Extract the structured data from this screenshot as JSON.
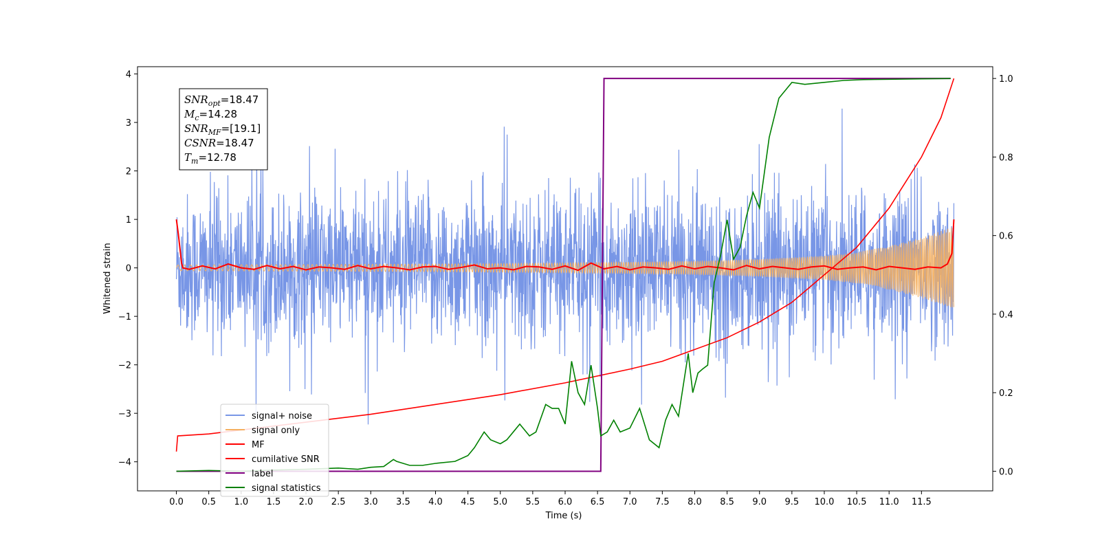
{
  "chart_data": {
    "type": "line",
    "xlabel": "Time (s)",
    "ylabel": "Whitened strain",
    "x_ticks": [
      "0.0",
      "0.5",
      "1.0",
      "1.5",
      "2.0",
      "2.5",
      "3.0",
      "3.5",
      "4.0",
      "4.5",
      "5.0",
      "5.5",
      "6.0",
      "6.5",
      "7.0",
      "7.5",
      "8.0",
      "8.5",
      "9.0",
      "9.5",
      "10.0",
      "10.5",
      "11.0",
      "11.5"
    ],
    "xlim": [
      -0.6,
      12.6
    ],
    "ylim": [
      -4.6,
      4.15
    ],
    "y_ticks": [
      "4",
      "3",
      "2",
      "1",
      "0",
      "−1",
      "−2",
      "−3",
      "−4"
    ],
    "y2lim": [
      -0.05,
      1.03
    ],
    "y2_ticks": [
      "0.0",
      "0.2",
      "0.4",
      "0.6",
      "0.8",
      "1.0"
    ],
    "annotations": [
      {
        "base": "SNR",
        "sub": "opt",
        "value": "=18.47"
      },
      {
        "base": "M",
        "sub": "c",
        "value": "=14.28"
      },
      {
        "base": "SNR",
        "sub": "MF",
        "value": "=[19.1]"
      },
      {
        "base": "CSNR",
        "sub": "",
        "value": "=18.47"
      },
      {
        "base": "T",
        "sub": "m",
        "value": "=12.78"
      }
    ],
    "legend_position": "lower-left",
    "series": [
      {
        "name": "signal+ noise",
        "color": "#7896e6",
        "axis": "left",
        "description": "noisy whitened strain, approx ±2 amplitude with spikes to ±3",
        "envelope": {
          "x": [
            0,
            12
          ],
          "min": -2.2,
          "max": 2.2,
          "peak_min": -3.3,
          "peak_max": 3.3
        }
      },
      {
        "name": "signal only",
        "color": "#f5b060",
        "axis": "left",
        "envelope": {
          "x": [
            0,
            2,
            4,
            6,
            8,
            9,
            10,
            10.5,
            11,
            11.5,
            12
          ],
          "amp": [
            0.06,
            0.07,
            0.08,
            0.1,
            0.14,
            0.18,
            0.25,
            0.32,
            0.45,
            0.62,
            0.85
          ]
        }
      },
      {
        "name": "MF",
        "color": "#ff0000",
        "axis": "left",
        "x": [
          0,
          0.03,
          0.08,
          0.1,
          0.2,
          0.4,
          0.6,
          0.8,
          1.0,
          1.2,
          1.4,
          1.6,
          1.8,
          2.0,
          2.2,
          2.4,
          2.6,
          2.8,
          3.0,
          3.2,
          3.4,
          3.6,
          3.8,
          4.0,
          4.2,
          4.4,
          4.6,
          4.8,
          5.0,
          5.2,
          5.4,
          5.6,
          5.8,
          6.0,
          6.2,
          6.4,
          6.6,
          6.8,
          7.0,
          7.2,
          7.4,
          7.6,
          7.8,
          8.0,
          8.2,
          8.4,
          8.6,
          8.8,
          9.0,
          9.2,
          9.4,
          9.6,
          9.8,
          10.0,
          10.2,
          10.4,
          10.6,
          10.8,
          11.0,
          11.2,
          11.4,
          11.6,
          11.8,
          11.9,
          11.97,
          12.0
        ],
        "y": [
          1.0,
          0.7,
          0.1,
          0.0,
          -0.03,
          0.04,
          -0.02,
          0.08,
          0.0,
          -0.03,
          0.05,
          -0.02,
          0.03,
          -0.04,
          0.02,
          0.0,
          -0.03,
          0.05,
          -0.02,
          0.03,
          0.0,
          -0.04,
          0.02,
          0.03,
          -0.03,
          0.01,
          0.06,
          -0.02,
          0.0,
          -0.04,
          0.03,
          0.02,
          -0.03,
          0.04,
          -0.05,
          0.1,
          -0.02,
          0.03,
          -0.04,
          0.02,
          0.0,
          -0.03,
          0.04,
          -0.02,
          0.03,
          0.0,
          -0.04,
          0.05,
          -0.02,
          0.03,
          0.0,
          -0.03,
          0.02,
          0.04,
          -0.03,
          0.0,
          0.02,
          -0.04,
          0.03,
          0.0,
          -0.03,
          0.02,
          0.0,
          0.08,
          0.3,
          1.0
        ]
      },
      {
        "name": "cumilative SNR",
        "color": "#ff0000",
        "axis": "right",
        "x": [
          0,
          0.02,
          0.5,
          1.0,
          2.0,
          3.0,
          4.0,
          5.0,
          6.0,
          7.0,
          7.5,
          8.0,
          8.5,
          9.0,
          9.5,
          10.0,
          10.5,
          11.0,
          11.5,
          11.8,
          12.0
        ],
        "y": [
          0.05,
          0.09,
          0.095,
          0.105,
          0.125,
          0.145,
          0.17,
          0.195,
          0.225,
          0.26,
          0.28,
          0.31,
          0.34,
          0.38,
          0.43,
          0.5,
          0.57,
          0.67,
          0.8,
          0.9,
          1.0
        ]
      },
      {
        "name": "label",
        "color": "#800080",
        "axis": "right",
        "x": [
          0,
          6.55,
          6.6,
          11.95
        ],
        "y": [
          0.0,
          0.0,
          1.0,
          1.0
        ]
      },
      {
        "name": "signal statistics",
        "color": "#008000",
        "axis": "right",
        "x": [
          0,
          0.5,
          1.0,
          1.5,
          2.0,
          2.5,
          2.8,
          3.0,
          3.2,
          3.35,
          3.4,
          3.6,
          3.8,
          4.0,
          4.3,
          4.5,
          4.6,
          4.75,
          4.85,
          5.0,
          5.1,
          5.2,
          5.3,
          5.45,
          5.55,
          5.7,
          5.8,
          5.9,
          6.0,
          6.1,
          6.2,
          6.3,
          6.4,
          6.5,
          6.55,
          6.65,
          6.75,
          6.85,
          7.0,
          7.15,
          7.3,
          7.45,
          7.55,
          7.65,
          7.75,
          7.9,
          7.97,
          8.05,
          8.12,
          8.2,
          8.3,
          8.4,
          8.5,
          8.6,
          8.7,
          8.8,
          8.9,
          9.0,
          9.15,
          9.3,
          9.5,
          9.7,
          10.0,
          10.3,
          10.6,
          11.0,
          11.5,
          11.95
        ],
        "y": [
          0.0,
          0.002,
          0.0,
          0.003,
          0.005,
          0.008,
          0.005,
          0.01,
          0.012,
          0.03,
          0.025,
          0.015,
          0.015,
          0.02,
          0.025,
          0.04,
          0.06,
          0.1,
          0.08,
          0.07,
          0.08,
          0.1,
          0.12,
          0.09,
          0.1,
          0.17,
          0.16,
          0.16,
          0.12,
          0.28,
          0.2,
          0.17,
          0.27,
          0.16,
          0.09,
          0.1,
          0.13,
          0.1,
          0.11,
          0.16,
          0.08,
          0.06,
          0.13,
          0.17,
          0.14,
          0.3,
          0.2,
          0.25,
          0.26,
          0.27,
          0.48,
          0.55,
          0.64,
          0.54,
          0.57,
          0.65,
          0.71,
          0.67,
          0.85,
          0.95,
          0.99,
          0.985,
          0.99,
          0.995,
          0.997,
          0.998,
          0.999,
          1.0
        ]
      }
    ]
  }
}
